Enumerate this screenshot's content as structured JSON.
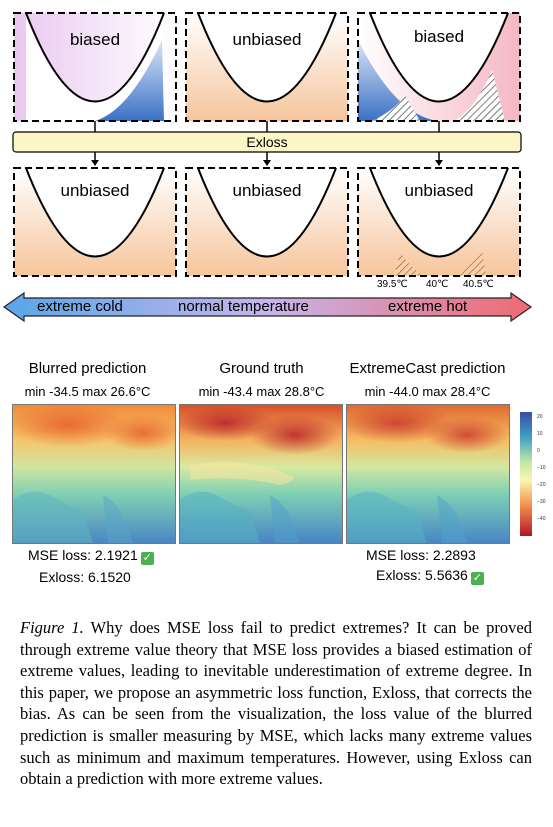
{
  "diagram": {
    "top_labels": [
      "biased",
      "unbiased",
      "biased"
    ],
    "exloss_label": "Exloss",
    "bottom_labels": [
      "unbiased",
      "unbiased",
      "unbiased"
    ],
    "temp_ticks": [
      "39.5℃",
      "40℃",
      "40.5℃"
    ],
    "arrow_labels": [
      "extreme cold",
      "normal temperature",
      "extreme hot"
    ]
  },
  "maps": [
    {
      "title": "Blurred prediction",
      "subtitle": "min -34.5 max 26.6°C"
    },
    {
      "title": "Ground truth",
      "subtitle": "min -43.4 max 28.8°C"
    },
    {
      "title": "ExtremeCast prediction",
      "subtitle": "min -44.0 max 28.4°C"
    }
  ],
  "colorbar": {
    "ticks": [
      "20",
      "10",
      "0",
      "−10",
      "−20",
      "−30",
      "−40"
    ]
  },
  "losses": {
    "left": {
      "mse": "MSE loss: 2.1921",
      "exloss": "Exloss: 6.1520",
      "winner": "mse"
    },
    "right": {
      "mse": "MSE loss: 2.2893",
      "exloss": "Exloss: 5.5636",
      "winner": "exloss"
    }
  },
  "caption": {
    "label": "Figure 1.",
    "text": "Why does MSE loss fail to predict extremes? It can be proved through extreme value theory that MSE loss provides a biased estimation of extreme values, leading to inevitable underestimation of extreme degree. In this paper, we propose an asymmetric loss function, Exloss, that corrects the bias. As can be seen from the visualization, the loss value of the blurred prediction is smaller measuring by MSE, which lacks many extreme values such as minimum and maximum temperatures. However, using Exloss can obtain a prediction with more extreme values."
  },
  "colors": {
    "cold": "#3a78c9",
    "hot": "#f08050",
    "exloss_box": "#fcf5c4"
  }
}
